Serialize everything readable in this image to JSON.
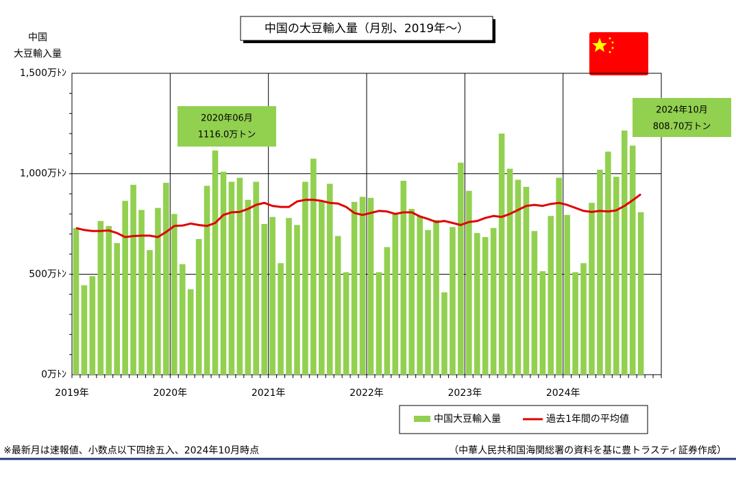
{
  "chart_data": {
    "type": "bar_line",
    "title": "中国の大豆輸入量（月別、2019年～）",
    "y_label": [
      "中国",
      "大豆輸入量"
    ],
    "categories": [
      "2019年",
      null,
      null,
      null,
      null,
      null,
      null,
      null,
      null,
      null,
      null,
      null,
      "2020年",
      null,
      null,
      null,
      null,
      null,
      null,
      null,
      null,
      null,
      null,
      null,
      "2021年",
      null,
      null,
      null,
      null,
      null,
      null,
      null,
      null,
      null,
      null,
      null,
      "2022年",
      null,
      null,
      null,
      null,
      null,
      null,
      null,
      null,
      null,
      null,
      null,
      "2023年",
      null,
      null,
      null,
      null,
      null,
      null,
      null,
      null,
      null,
      null,
      null,
      "2024年",
      null,
      null,
      null,
      null,
      null,
      null,
      null,
      null,
      null,
      null,
      null
    ],
    "series": [
      {
        "name": "中国大豆輸入量",
        "color": "#92d050",
        "values": [
          730,
          445,
          490,
          765,
          740,
          655,
          865,
          945,
          820,
          620,
          830,
          955,
          800,
          550,
          425,
          675,
          940,
          1116,
          1010,
          960,
          980,
          870,
          960,
          750,
          785,
          555,
          780,
          745,
          960,
          1075,
          865,
          950,
          690,
          510,
          860,
          885,
          880,
          510,
          635,
          800,
          965,
          825,
          790,
          720,
          770,
          410,
          735,
          1055,
          915,
          705,
          685,
          730,
          1200,
          1025,
          970,
          935,
          715,
          515,
          790,
          980,
          795,
          510,
          555,
          855,
          1020,
          1110,
          985,
          1215,
          1140,
          808.7,
          null,
          null
        ]
      },
      {
        "name": "過去1年間の平均値",
        "color": "#e00000",
        "values": [
          730,
          720,
          715,
          715,
          718,
          705,
          685,
          690,
          692,
          692,
          685,
          710,
          740,
          742,
          752,
          745,
          740,
          755,
          795,
          808,
          810,
          825,
          845,
          855,
          840,
          835,
          835,
          862,
          870,
          870,
          865,
          855,
          852,
          835,
          805,
          795,
          805,
          815,
          812,
          800,
          808,
          808,
          788,
          775,
          760,
          765,
          755,
          745,
          760,
          765,
          780,
          790,
          785,
          800,
          820,
          840,
          845,
          840,
          850,
          855,
          845,
          830,
          815,
          810,
          815,
          812,
          818,
          840,
          868,
          898,
          null,
          null
        ]
      }
    ],
    "ylim": [
      0,
      1500
    ],
    "yticks": [
      {
        "value": 0,
        "label": "0万ﾄﾝ"
      },
      {
        "value": 500,
        "label": "500万ﾄﾝ"
      },
      {
        "value": 1000,
        "label": "1,000万ﾄﾝ"
      },
      {
        "value": 1500,
        "label": "1,500万ﾄﾝ"
      }
    ],
    "grid": true,
    "annotations": [
      {
        "index": 17,
        "date": "2020年06月",
        "label": "1116.0万トン"
      },
      {
        "index": 69,
        "date": "2024年10月",
        "label": "808.70万トン"
      }
    ],
    "notes": [
      "※最新月は速報値、小数点以下四捨五入、2024年10月時点",
      "（中華人民共和国海関総署の資料を基に豊トラスティ証券作成）"
    ]
  }
}
